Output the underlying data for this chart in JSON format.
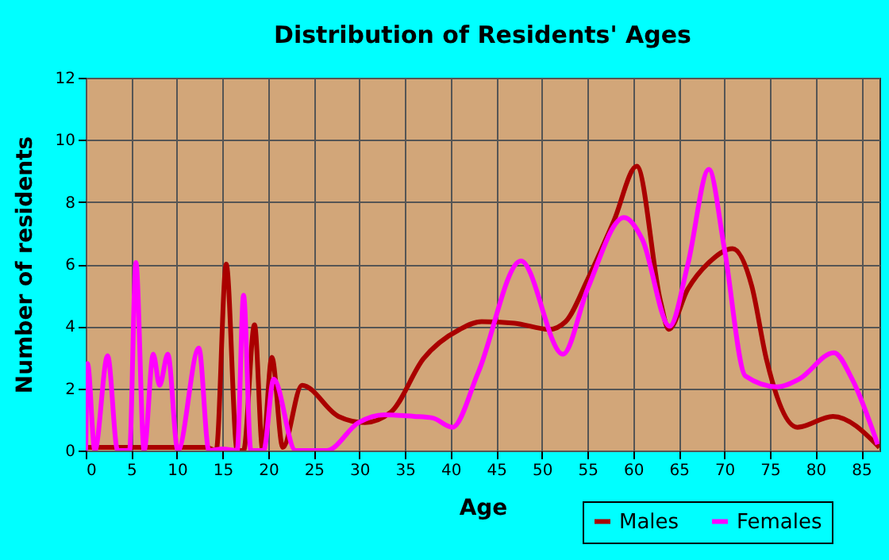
{
  "chart_data": {
    "type": "line",
    "title": "Distribution of Residents' Ages",
    "xlabel": "Age",
    "ylabel": "Number of residents",
    "series": [
      {
        "name": "Males",
        "color": "#aa0000",
        "x": [
          0,
          13.2,
          14.3,
          15.4,
          16.6,
          17.3,
          18.5,
          19.4,
          20.4,
          21.6,
          23.7,
          27.7,
          30.6,
          33.5,
          37,
          41,
          43.4,
          47,
          50.8,
          52.6,
          55,
          57.9,
          60.4,
          63,
          63.9,
          66,
          68.3,
          70.9,
          73,
          74.6,
          78,
          81.9,
          87
        ],
        "values": [
          0.1,
          0.1,
          0,
          6,
          0,
          0,
          4.05,
          0,
          3,
          0.1,
          2.1,
          1.1,
          0.9,
          1.25,
          2.95,
          3.9,
          4.15,
          4.1,
          3.9,
          4.15,
          5.5,
          7.4,
          9.15,
          4.8,
          3.9,
          5.2,
          6.05,
          6.5,
          5.3,
          2.95,
          0.75,
          1.1,
          0.1
        ]
      },
      {
        "name": "Females",
        "color": "#ff00ff",
        "x": [
          0,
          0.2,
          1.0,
          2.4,
          3.5,
          4.8,
          5.5,
          6.4,
          7.4,
          8.1,
          9.0,
          10.1,
          12.4,
          13.5,
          15,
          16.6,
          17.3,
          18.1,
          19.5,
          20.6,
          23,
          26.4,
          29.9,
          32.7,
          36,
          38,
          40.2,
          43,
          47.7,
          52.3,
          55,
          59,
          61,
          64,
          66,
          68.3,
          70,
          72.3,
          75.8,
          78.2,
          82,
          84,
          86.8
        ],
        "values": [
          0,
          2.8,
          0,
          3.05,
          0,
          0,
          6.05,
          0,
          3.1,
          2.1,
          3.1,
          0,
          3.3,
          0,
          0.05,
          0,
          5,
          0,
          0,
          2.3,
          0,
          0,
          0.9,
          1.15,
          1.1,
          1.05,
          0.75,
          2.5,
          6.1,
          3.1,
          5.2,
          7.5,
          6.8,
          4,
          6,
          9.05,
          6.5,
          2.4,
          2.05,
          2.3,
          3.15,
          2.3,
          0.2
        ]
      }
    ],
    "xlim": [
      0,
      87
    ],
    "xticks": [
      0,
      5,
      10,
      15,
      20,
      25,
      30,
      35,
      40,
      45,
      50,
      55,
      60,
      65,
      70,
      75,
      80,
      85
    ],
    "ylim": [
      0,
      12
    ],
    "yticks": [
      0,
      2,
      4,
      6,
      8,
      10,
      12
    ],
    "grid": true,
    "legend": "bottom right",
    "marker": "none",
    "line_style": "solid"
  }
}
